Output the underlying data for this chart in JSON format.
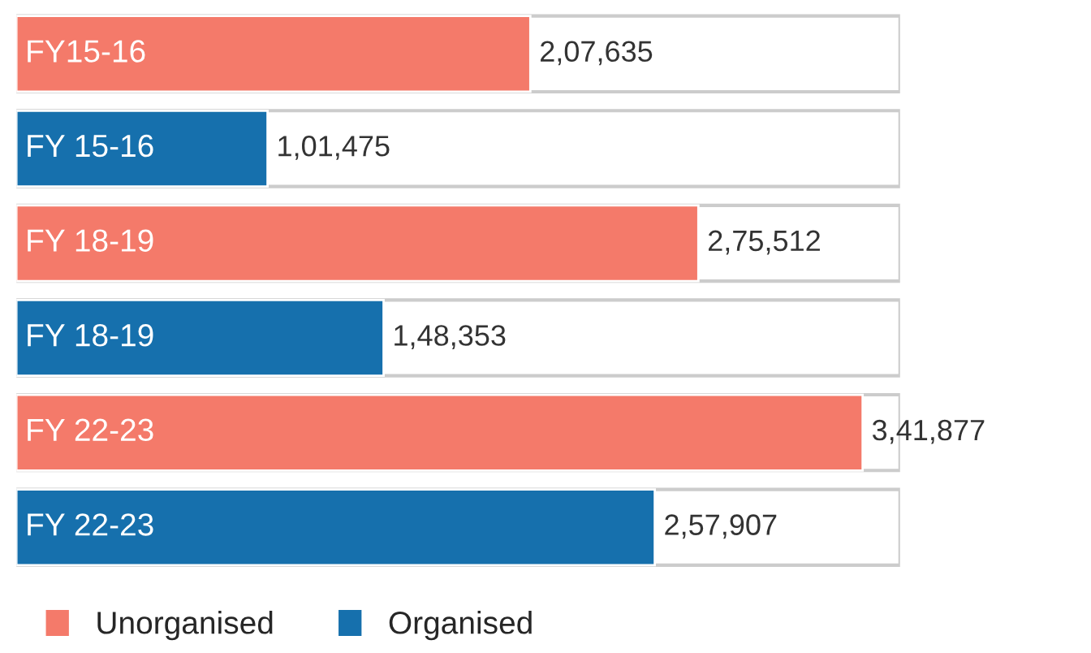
{
  "chart_data": {
    "type": "bar",
    "orientation": "horizontal",
    "categories": [
      "FY15-16",
      "FY 15-16",
      "FY 18-19",
      "FY 18-19",
      "FY 22-23",
      "FY 22-23"
    ],
    "series": [
      {
        "name": "Unorganised",
        "color": "#f47a6a",
        "values": [
          207635,
          null,
          275512,
          null,
          341877,
          null
        ],
        "value_labels": [
          "2,07,635",
          null,
          "2,75,512",
          null,
          "3,41,877",
          null
        ]
      },
      {
        "name": "Organised",
        "color": "#1670ad",
        "values": [
          null,
          101475,
          null,
          148353,
          null,
          257907
        ],
        "value_labels": [
          null,
          "1,01,475",
          null,
          "1,48,353",
          null,
          "2,57,907"
        ]
      }
    ],
    "xlim": [
      0,
      357000
    ],
    "legend": "bottom left"
  }
}
